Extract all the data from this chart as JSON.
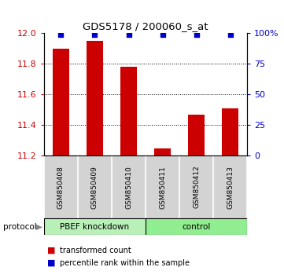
{
  "title": "GDS5178 / 200060_s_at",
  "samples": [
    "GSM850408",
    "GSM850409",
    "GSM850410",
    "GSM850411",
    "GSM850412",
    "GSM850413"
  ],
  "transformed_counts": [
    11.9,
    11.95,
    11.78,
    11.25,
    11.47,
    11.51
  ],
  "percentile_ranks": [
    99,
    99,
    99,
    99,
    99,
    99
  ],
  "ylim_left": [
    11.2,
    12.0
  ],
  "ylim_right": [
    0,
    100
  ],
  "yticks_left": [
    11.2,
    11.4,
    11.6,
    11.8,
    12.0
  ],
  "yticks_right": [
    0,
    25,
    50,
    75,
    100
  ],
  "bar_color": "#cc0000",
  "dot_color": "#0000cc",
  "protocol_groups": [
    {
      "label": "PBEF knockdown",
      "n": 3
    },
    {
      "label": "control",
      "n": 3
    }
  ],
  "protocol_label": "protocol",
  "bg_color": "#ffffff",
  "tick_label_color_left": "#cc0000",
  "tick_label_color_right": "#0000cc",
  "bar_width": 0.5,
  "label_bg": "#d3d3d3",
  "protocol_bg": "#90ee90",
  "legend_items": [
    {
      "color": "#cc0000",
      "label": "transformed count"
    },
    {
      "color": "#0000cc",
      "label": "percentile rank within the sample"
    }
  ]
}
